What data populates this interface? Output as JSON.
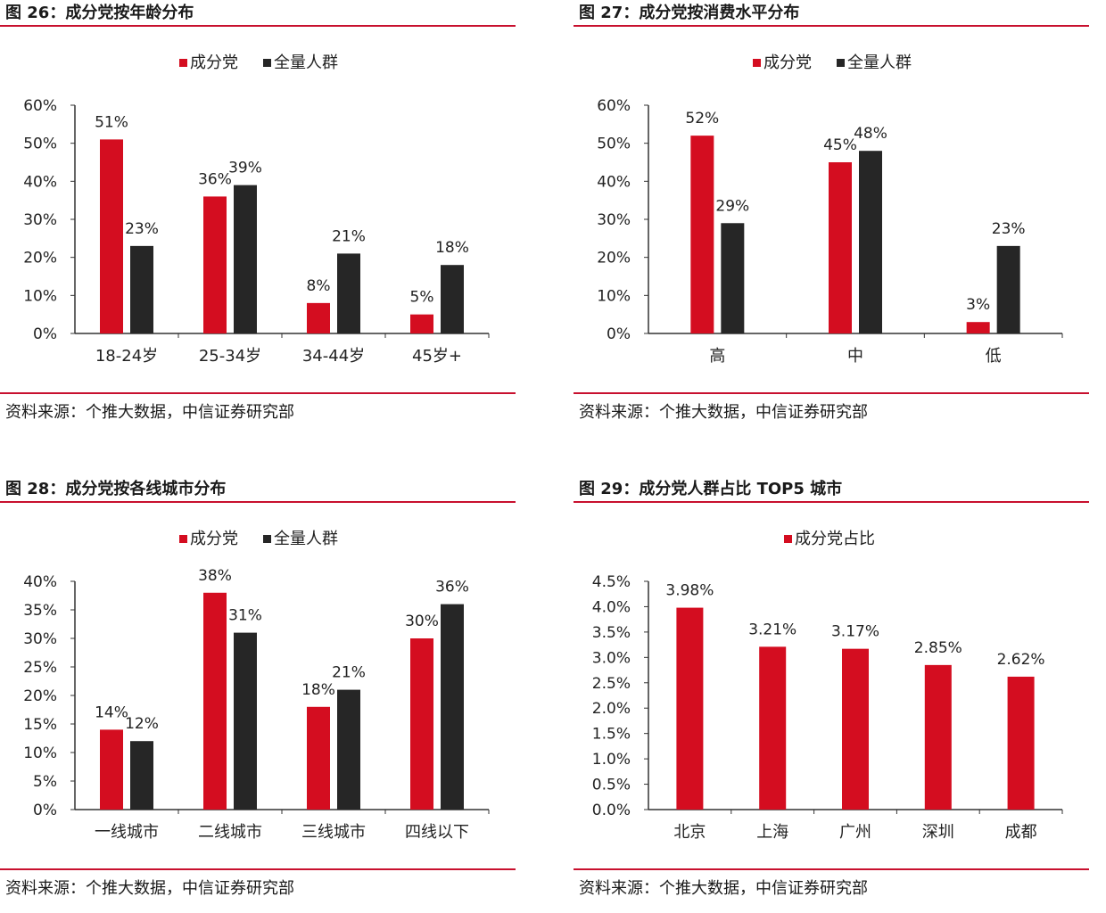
{
  "colors": {
    "red": "#d40d20",
    "dark": "#262626",
    "rule": "#c8102e"
  },
  "charts": [
    {
      "title": "图 26：成分党按年龄分布",
      "source": "资料来源：个推大数据，中信证券研究部",
      "chart_data": {
        "type": "bar",
        "categories": [
          "18-24岁",
          "25-34岁",
          "34-44岁",
          "45岁+"
        ],
        "series": [
          {
            "name": "成分党",
            "values": [
              51,
              36,
              8,
              5
            ],
            "labels": [
              "51%",
              "36%",
              "8%",
              "5%"
            ]
          },
          {
            "name": "全量人群",
            "values": [
              23,
              39,
              21,
              18
            ],
            "labels": [
              "23%",
              "39%",
              "21%",
              "18%"
            ]
          }
        ],
        "ylim": [
          0,
          60
        ],
        "yticks": [
          "0%",
          "10%",
          "20%",
          "30%",
          "40%",
          "50%",
          "60%"
        ],
        "legend": "top"
      }
    },
    {
      "title": "图 27：成分党按消费水平分布",
      "source": "资料来源：个推大数据，中信证券研究部",
      "chart_data": {
        "type": "bar",
        "categories": [
          "高",
          "中",
          "低"
        ],
        "series": [
          {
            "name": "成分党",
            "values": [
              52,
              45,
              3
            ],
            "labels": [
              "52%",
              "45%",
              "3%"
            ]
          },
          {
            "name": "全量人群",
            "values": [
              29,
              48,
              23
            ],
            "labels": [
              "29%",
              "48%",
              "23%"
            ]
          }
        ],
        "ylim": [
          0,
          60
        ],
        "yticks": [
          "0%",
          "10%",
          "20%",
          "30%",
          "40%",
          "50%",
          "60%"
        ],
        "legend": "top"
      }
    },
    {
      "title": "图 28：成分党按各线城市分布",
      "source": "资料来源：个推大数据，中信证券研究部",
      "chart_data": {
        "type": "bar",
        "categories": [
          "一线城市",
          "二线城市",
          "三线城市",
          "四线以下"
        ],
        "series": [
          {
            "name": "成分党",
            "values": [
              14,
              38,
              18,
              30
            ],
            "labels": [
              "14%",
              "38%",
              "18%",
              "30%"
            ]
          },
          {
            "name": "全量人群",
            "values": [
              12,
              31,
              21,
              36
            ],
            "labels": [
              "12%",
              "31%",
              "21%",
              "36%"
            ]
          }
        ],
        "ylim": [
          0,
          40
        ],
        "yticks": [
          "0%",
          "5%",
          "10%",
          "15%",
          "20%",
          "25%",
          "30%",
          "35%",
          "40%"
        ],
        "legend": "top"
      }
    },
    {
      "title": "图 29：成分党人群占比 TOP5 城市",
      "source": "资料来源：个推大数据，中信证券研究部",
      "chart_data": {
        "type": "bar",
        "categories": [
          "北京",
          "上海",
          "广州",
          "深圳",
          "成都"
        ],
        "series": [
          {
            "name": "成分党占比",
            "values": [
              3.98,
              3.21,
              3.17,
              2.85,
              2.62
            ],
            "labels": [
              "3.98%",
              "3.21%",
              "3.17%",
              "2.85%",
              "2.62%"
            ]
          }
        ],
        "ylim": [
          0,
          4.5
        ],
        "yticks": [
          "0.0%",
          "0.5%",
          "1.0%",
          "1.5%",
          "2.0%",
          "2.5%",
          "3.0%",
          "3.5%",
          "4.0%",
          "4.5%"
        ],
        "legend": "top"
      }
    }
  ]
}
